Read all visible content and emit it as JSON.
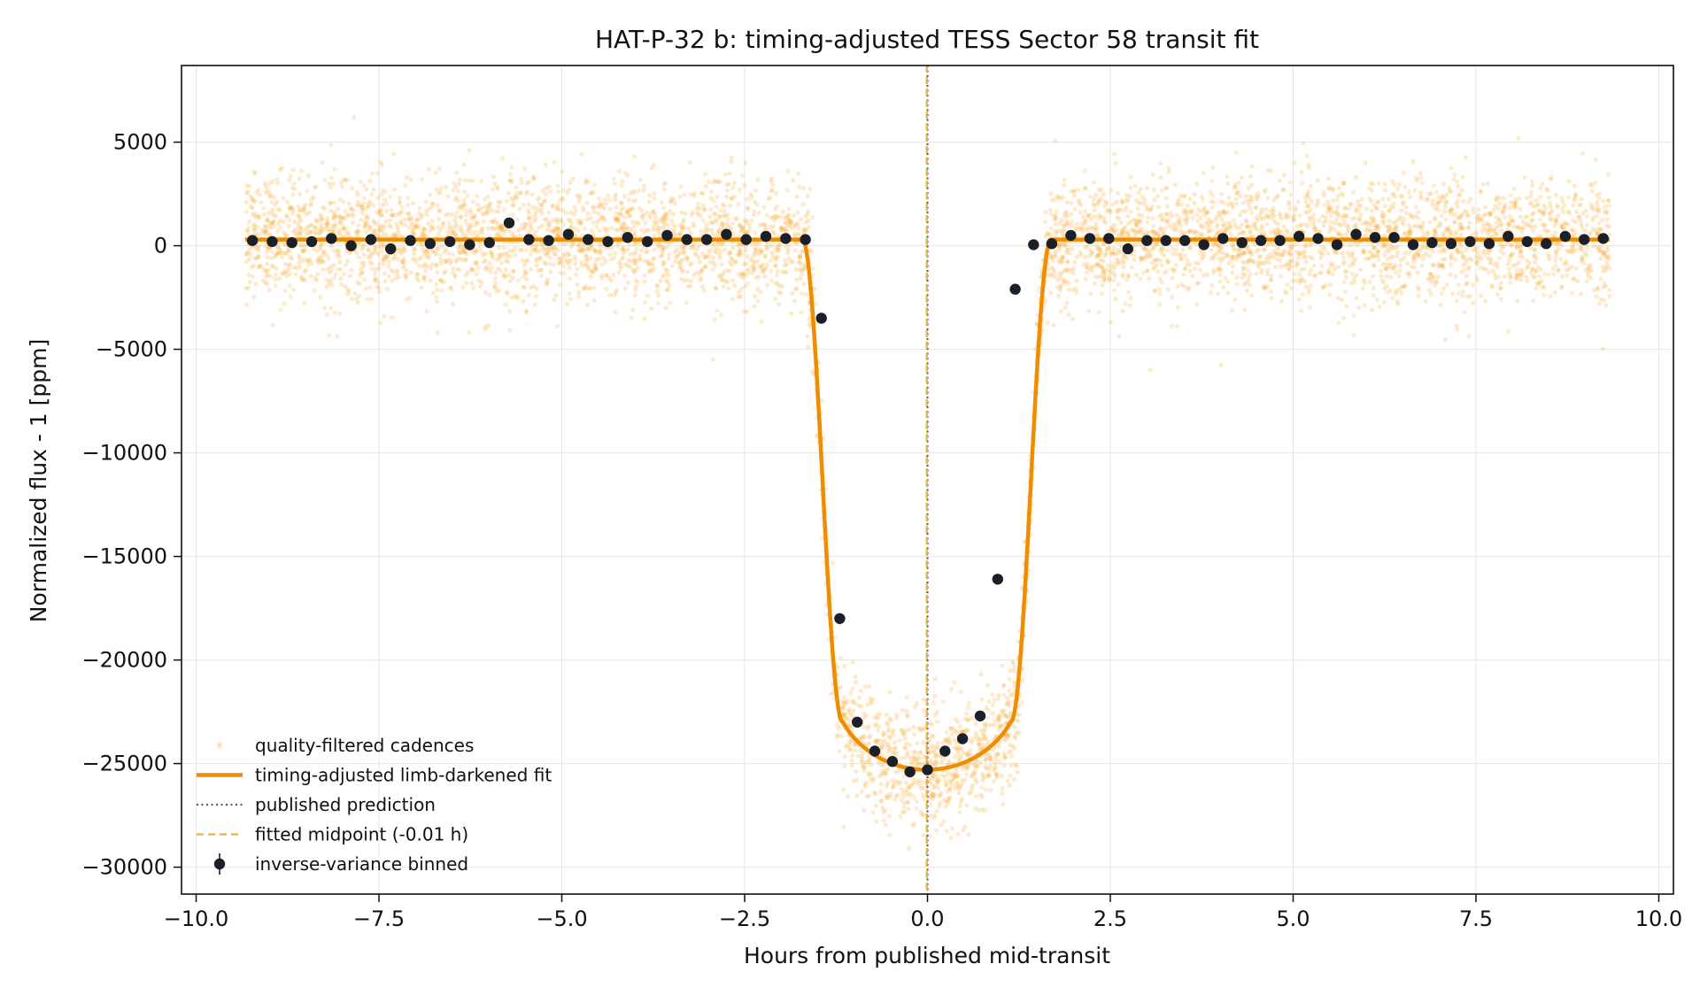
{
  "chart_data": {
    "type": "scatter",
    "title": "HAT-P-32 b: timing-adjusted TESS Sector 58 transit fit",
    "xlabel": "Hours from published mid-transit",
    "ylabel": "Normalized flux - 1 [ppm]",
    "xlim": [
      -10.2,
      10.2
    ],
    "ylim": [
      -31300,
      8700
    ],
    "xticks": [
      -10.0,
      -7.5,
      -5.0,
      -2.5,
      0.0,
      2.5,
      5.0,
      7.5,
      10.0
    ],
    "xtick_labels": [
      "−10.0",
      "−7.5",
      "−5.0",
      "−2.5",
      "0.0",
      "2.5",
      "5.0",
      "7.5",
      "10.0"
    ],
    "yticks": [
      5000,
      0,
      -5000,
      -10000,
      -15000,
      -20000,
      -25000,
      -30000
    ],
    "ytick_labels": [
      "5000",
      "0",
      "−5000",
      "−10000",
      "−15000",
      "−20000",
      "−25000",
      "−30000"
    ],
    "grid": true,
    "legend_position": "lower-left",
    "colors": {
      "cadence": "#f5a623",
      "fit": "#f08c00",
      "published": "#555f6b",
      "fitted_mid": "#f0b040",
      "binned": "#1b1f27"
    },
    "published_prediction_x": 0.0,
    "fitted_midpoint_x": -0.01,
    "fit_model": {
      "t1": 1.7,
      "t2": 1.15,
      "depth_ppm": 25600,
      "baseline_ppm": 300,
      "limb_darkening_coeff": 0.5
    },
    "cadences": {
      "x_range": [
        -9.33,
        9.33
      ],
      "approx_count": 6000,
      "scatter_ppm": 1500
    },
    "series": [
      {
        "name": "inverse-variance binned",
        "kind": "binned",
        "x": [
          -9.23,
          -8.96,
          -8.69,
          -8.42,
          -8.15,
          -7.88,
          -7.61,
          -7.34,
          -7.07,
          -6.8,
          -6.53,
          -6.26,
          -5.99,
          -5.72,
          -5.45,
          -5.18,
          -4.91,
          -4.64,
          -4.37,
          -4.1,
          -3.83,
          -3.56,
          -3.29,
          -3.02,
          -2.75,
          -2.48,
          -2.21,
          -1.94,
          -1.67,
          -1.45,
          -1.2,
          -0.96,
          -0.72,
          -0.48,
          -0.24,
          0.0,
          0.24,
          0.48,
          0.72,
          0.96,
          1.2,
          1.45,
          1.7,
          1.96,
          2.22,
          2.48,
          2.74,
          3.0,
          3.26,
          3.52,
          3.78,
          4.04,
          4.3,
          4.56,
          4.82,
          5.08,
          5.34,
          5.6,
          5.86,
          6.12,
          6.38,
          6.64,
          6.9,
          7.16,
          7.42,
          7.68,
          7.94,
          8.2,
          8.46,
          8.72,
          8.98,
          9.24
        ],
        "y": [
          250,
          200,
          150,
          200,
          350,
          0,
          300,
          -150,
          250,
          100,
          200,
          50,
          150,
          1100,
          300,
          250,
          550,
          300,
          200,
          400,
          200,
          500,
          300,
          300,
          550,
          300,
          450,
          350,
          300,
          -3500,
          -18000,
          -23000,
          -24400,
          -24900,
          -25400,
          -25300,
          -24400,
          -23800,
          -22700,
          -16100,
          -2100,
          50,
          100,
          500,
          350,
          350,
          -150,
          250,
          250,
          250,
          50,
          350,
          150,
          250,
          250,
          450,
          350,
          50,
          550,
          400,
          400,
          50,
          150,
          100,
          200,
          100,
          450,
          200,
          100,
          450,
          300,
          350
        ]
      }
    ],
    "legend": [
      {
        "label": "quality-filtered cadences",
        "kind": "cadence"
      },
      {
        "label": "timing-adjusted limb-darkened fit",
        "kind": "fit"
      },
      {
        "label": "published prediction",
        "kind": "published"
      },
      {
        "label": "fitted midpoint (-0.01 h)",
        "kind": "fitted_mid"
      },
      {
        "label": "inverse-variance binned",
        "kind": "binned"
      }
    ]
  }
}
